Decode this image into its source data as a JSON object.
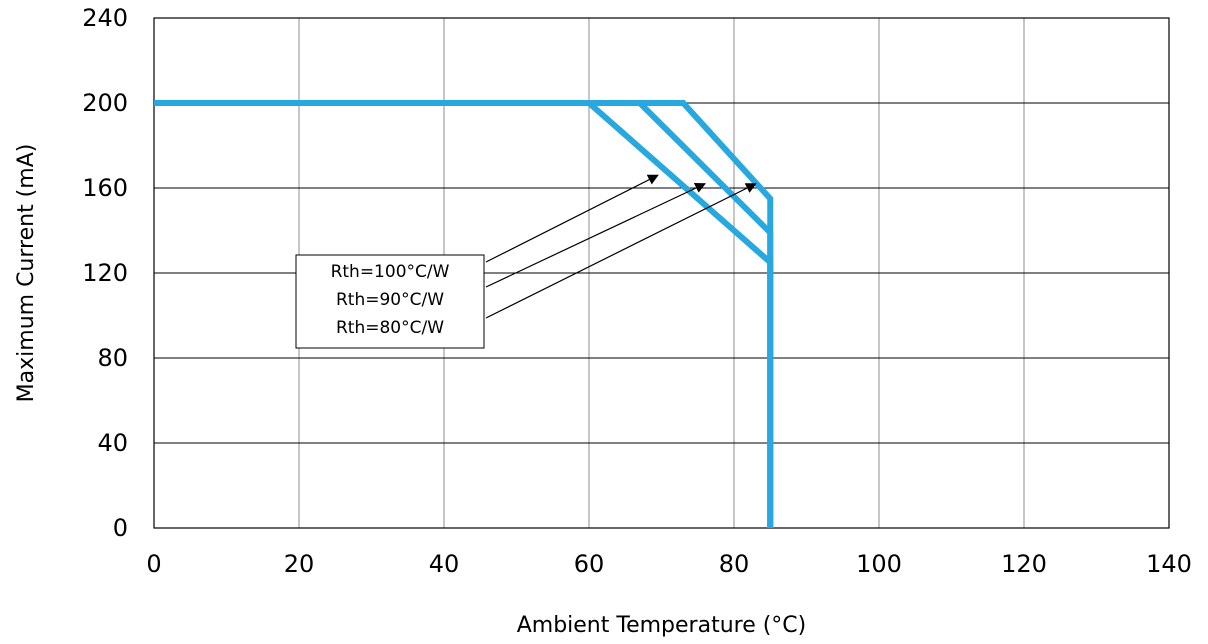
{
  "chart_data": {
    "type": "line",
    "xlabel": "Ambient Temperature (°C)",
    "ylabel": "Maximum Current (mA)",
    "xlim": [
      0,
      140
    ],
    "ylim": [
      0,
      240
    ],
    "xticks": [
      "0",
      "20",
      "40",
      "60",
      "80",
      "100",
      "120",
      "140"
    ],
    "yticks": [
      "0",
      "40",
      "80",
      "120",
      "160",
      "200",
      "240"
    ],
    "grid": true,
    "line_color": "#29a8e0",
    "series": [
      {
        "name": "Rth=100°C/W",
        "x": [
          0,
          60,
          85,
          85
        ],
        "y": [
          200,
          200,
          125,
          0
        ]
      },
      {
        "name": "Rth=90°C/W",
        "x": [
          0,
          67,
          85,
          85
        ],
        "y": [
          200,
          200,
          139,
          0
        ]
      },
      {
        "name": "Rth=80°C/W",
        "x": [
          0,
          73,
          85,
          85
        ],
        "y": [
          200,
          200,
          155,
          0
        ]
      }
    ],
    "annotation_box": {
      "labels": [
        "Rth=100°C/W",
        "Rth=90°C/W",
        "Rth=80°C/W"
      ],
      "arrow_targets": [
        {
          "x": 69.5,
          "y": 166
        },
        {
          "x": 76,
          "y": 162
        },
        {
          "x": 83,
          "y": 162
        }
      ]
    }
  }
}
